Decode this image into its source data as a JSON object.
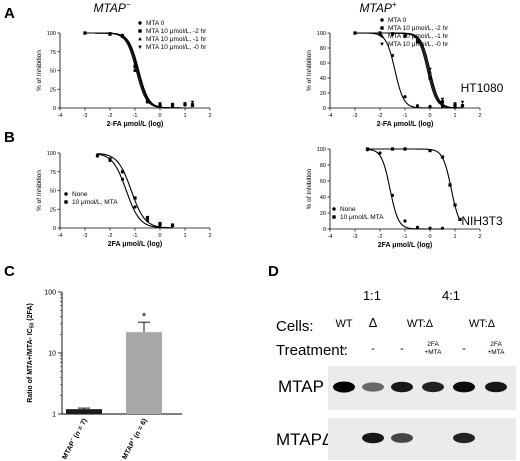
{
  "figure": {
    "panel_letters": [
      "A",
      "B",
      "C",
      "D"
    ],
    "row_labels": [
      "HT1080",
      "NIH3T3"
    ],
    "column_titles": [
      "MTAP",
      "MTAP"
    ],
    "column_title_superscripts": [
      "−",
      "+"
    ]
  },
  "chart_data": [
    {
      "type": "line",
      "panel": "A-left",
      "title": "MTAP−",
      "xlabel": "2-FA μmol/L (log)",
      "ylabel": "% of Inhibition",
      "xlim": [
        -4,
        2
      ],
      "ylim": [
        0,
        100
      ],
      "xticks": [
        -4,
        -3,
        -2,
        -1,
        0,
        1,
        2
      ],
      "yticks": [
        0,
        25,
        50,
        75,
        100
      ],
      "legend_position": "top-right",
      "series": [
        {
          "name": "MTA 0",
          "marker": "circle",
          "ic50_log": -0.95,
          "hill": 2.2,
          "points": [
            [
              -3,
              100
            ],
            [
              -2,
              99
            ],
            [
              -1.5,
              97
            ],
            [
              -1,
              50
            ],
            [
              -0.5,
              8
            ],
            [
              0,
              3
            ],
            [
              0.5,
              5
            ],
            [
              1,
              4
            ],
            [
              1.3,
              5
            ]
          ]
        },
        {
          "name": "MTA 10 μmol/L, -2 hr",
          "marker": "square",
          "ic50_log": -0.9,
          "hill": 2.2,
          "points": [
            [
              -3,
              100
            ],
            [
              -2,
              99
            ],
            [
              -1.5,
              96
            ],
            [
              -1,
              55
            ],
            [
              -0.5,
              9
            ],
            [
              0,
              4
            ],
            [
              0.5,
              3
            ],
            [
              1,
              5
            ],
            [
              1.3,
              4
            ]
          ]
        },
        {
          "name": "MTA 10 μmol/L, -1 hr",
          "marker": "triangle-up",
          "ic50_log": -0.88,
          "hill": 2.2,
          "points": [
            [
              -3,
              100
            ],
            [
              -2,
              98
            ],
            [
              -1.5,
              95
            ],
            [
              -1,
              58
            ],
            [
              -0.5,
              10
            ],
            [
              0,
              5
            ],
            [
              0.5,
              4
            ],
            [
              1,
              6
            ],
            [
              1.3,
              3
            ]
          ]
        },
        {
          "name": "MTA 10 μmol/L, -0 hr",
          "marker": "triangle-down",
          "ic50_log": -0.85,
          "hill": 2.2,
          "points": [
            [
              -3,
              100
            ],
            [
              -2,
              98
            ],
            [
              -1.5,
              95
            ],
            [
              -1,
              60
            ],
            [
              -0.5,
              11
            ],
            [
              0,
              6
            ],
            [
              0.5,
              5
            ],
            [
              1,
              6
            ],
            [
              1.3,
              8
            ]
          ]
        }
      ]
    },
    {
      "type": "line",
      "panel": "A-right",
      "title": "MTAP+",
      "xlabel": "2-FA μmol/L (log)",
      "ylabel": "% of Inhibition",
      "xlim": [
        -4,
        2
      ],
      "ylim": [
        0,
        100
      ],
      "xticks": [
        -4,
        -3,
        -2,
        -1,
        0,
        1,
        2
      ],
      "yticks": [
        0,
        20,
        40,
        60,
        80,
        100
      ],
      "legend_position": "top-right",
      "series": [
        {
          "name": "MTA 0",
          "marker": "circle",
          "ic50_log": -1.4,
          "hill": 2.5,
          "points": [
            [
              -3,
              100
            ],
            [
              -2,
              98
            ],
            [
              -1.5,
              70
            ],
            [
              -1,
              15
            ],
            [
              -0.5,
              3
            ],
            [
              0,
              2
            ],
            [
              0.5,
              2
            ],
            [
              1,
              1
            ]
          ]
        },
        {
          "name": "MTA 10 μmol/L, -2 hr",
          "marker": "square",
          "ic50_log": -0.1,
          "hill": 2.5,
          "points": [
            [
              -3,
              100
            ],
            [
              -2,
              100
            ],
            [
              -1.5,
              99
            ],
            [
              -1,
              97
            ],
            [
              -0.5,
              88
            ],
            [
              0,
              40
            ],
            [
              0.5,
              8
            ],
            [
              1,
              4
            ],
            [
              1.3,
              3
            ]
          ]
        },
        {
          "name": "MTA 10 μmol/L, -1 hr",
          "marker": "triangle-up",
          "ic50_log": -0.05,
          "hill": 2.5,
          "points": [
            [
              -3,
              100
            ],
            [
              -2,
              100
            ],
            [
              -1.5,
              98
            ],
            [
              -1,
              96
            ],
            [
              -0.5,
              90
            ],
            [
              0,
              48
            ],
            [
              0.5,
              10
            ],
            [
              1,
              5
            ],
            [
              1.3,
              4
            ]
          ]
        },
        {
          "name": "MTA 10 μmol/L, -0 hr",
          "marker": "triangle-down",
          "ic50_log": 0.0,
          "hill": 2.5,
          "points": [
            [
              -3,
              100
            ],
            [
              -2,
              100
            ],
            [
              -1.5,
              98
            ],
            [
              -1,
              95
            ],
            [
              -0.5,
              90
            ],
            [
              0,
              52
            ],
            [
              0.5,
              12
            ],
            [
              1,
              6
            ],
            [
              1.3,
              8
            ]
          ]
        }
      ]
    },
    {
      "type": "line",
      "panel": "B-left",
      "xlabel": "2FA μmol/L (log)",
      "ylabel": "% of Inhibition",
      "xlim": [
        -4,
        2
      ],
      "ylim": [
        0,
        100
      ],
      "xticks": [
        -4,
        -3,
        -2,
        -1,
        0,
        1,
        2
      ],
      "yticks": [
        0,
        25,
        50,
        75,
        100
      ],
      "legend_position": "bottom-left",
      "series": [
        {
          "name": "None",
          "marker": "circle",
          "ic50_log": -1.35,
          "hill": 1.6,
          "points": [
            [
              -2.5,
              96
            ],
            [
              -2,
              90
            ],
            [
              -1.5,
              65
            ],
            [
              -1,
              28
            ],
            [
              -0.5,
              10
            ],
            [
              0,
              4
            ],
            [
              0.5,
              3
            ]
          ]
        },
        {
          "name": "10 μmol/L, MTA",
          "marker": "square",
          "ic50_log": -1.15,
          "hill": 1.6,
          "points": [
            [
              -2.5,
              97
            ],
            [
              -2,
              92
            ],
            [
              -1.5,
              75
            ],
            [
              -1,
              40
            ],
            [
              -0.5,
              14
            ],
            [
              0,
              6
            ],
            [
              0.5,
              4
            ]
          ]
        }
      ]
    },
    {
      "type": "line",
      "panel": "B-right",
      "xlabel": "2FA μmol/L (log)",
      "ylabel": "% of Inhibition",
      "xlim": [
        -4,
        2
      ],
      "ylim": [
        0,
        100
      ],
      "xticks": [
        -4,
        -3,
        -2,
        -1,
        0,
        1,
        2
      ],
      "yticks": [
        0,
        20,
        40,
        60,
        80,
        100
      ],
      "legend_position": "bottom-left",
      "series": [
        {
          "name": "None",
          "marker": "circle",
          "ic50_log": -1.6,
          "hill": 2.6,
          "points": [
            [
              -2.5,
              99
            ],
            [
              -2,
              95
            ],
            [
              -1.5,
              42
            ],
            [
              -1,
              10
            ],
            [
              -0.5,
              2
            ],
            [
              0,
              1
            ],
            [
              0.5,
              1
            ]
          ]
        },
        {
          "name": "10 μmol/L MTA",
          "marker": "square",
          "ic50_log": 0.85,
          "hill": 2.6,
          "points": [
            [
              -2.5,
              100
            ],
            [
              -1.5,
              100
            ],
            [
              -1,
              100
            ],
            [
              0,
              98
            ],
            [
              0.5,
              90
            ],
            [
              0.8,
              55
            ],
            [
              1,
              30
            ],
            [
              1.2,
              12
            ]
          ]
        }
      ]
    },
    {
      "type": "bar",
      "panel": "C",
      "ylabel": "Ratio of MTA+/MTA- IC50 (2FA)",
      "ylabel_parts": [
        "Ratio of MTA+/MTA- IC",
        "50",
        " (2FA)"
      ],
      "yscale": "log",
      "ylim": [
        1,
        100
      ],
      "yticks": [
        1,
        10,
        100
      ],
      "ytick_labels": [
        "1",
        "10",
        "100"
      ],
      "categories": [
        "MTAP− (n = 7)",
        "MTAP+ (n = 6)"
      ],
      "category_parts": [
        [
          "MTAP",
          "−",
          " (",
          "n",
          " = 7)"
        ],
        [
          "MTAP",
          "+",
          " (",
          "n",
          " = 6)"
        ]
      ],
      "values": [
        1.2,
        22
      ],
      "errors": [
        0.05,
        10
      ],
      "annotations": [
        "",
        "*"
      ],
      "bar_colors": [
        "#1a1a1a",
        "#a8a8a8"
      ]
    }
  ],
  "blot": {
    "ratio_labels": [
      "1:1",
      "4:1"
    ],
    "cells_label": "Cells:",
    "treatment_label": "Treatment:",
    "cells": [
      "WT",
      "Δ",
      "WT:Δ",
      "WT:Δ"
    ],
    "treatments": [
      "-",
      "-",
      "-",
      "2FA\n+MTA",
      "-",
      "2FA\n+MTA"
    ],
    "rows": [
      {
        "label": "MTAP",
        "band_intensity": [
          1.0,
          0.55,
          0.9,
          0.85,
          0.95,
          0.9
        ]
      },
      {
        "label": "MTAPΔ",
        "band_intensity": [
          0.0,
          0.9,
          0.7,
          0.0,
          0.85,
          0.0
        ]
      }
    ]
  }
}
